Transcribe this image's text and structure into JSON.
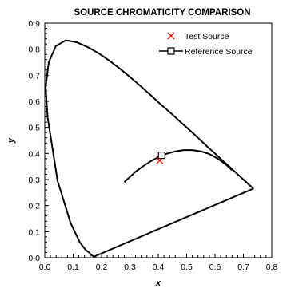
{
  "chart_data": {
    "type": "scatter",
    "title": "SOURCE CHROMATICITY COMPARISON",
    "xlabel": "x",
    "ylabel": "y",
    "xlim": [
      0.0,
      0.8
    ],
    "ylim": [
      0.0,
      0.9
    ],
    "xticks": [
      "0.0",
      "0.1",
      "0.2",
      "0.3",
      "0.4",
      "0.5",
      "0.6",
      "0.7",
      "0.8"
    ],
    "yticks": [
      "0.0",
      "0.1",
      "0.2",
      "0.3",
      "0.4",
      "0.5",
      "0.6",
      "0.7",
      "0.8",
      "0.9"
    ],
    "grid": false,
    "legend": "top-right",
    "spectral_locus": {
      "x": [
        0.175,
        0.171,
        0.166,
        0.156,
        0.144,
        0.124,
        0.091,
        0.045,
        0.01,
        0.003,
        0.014,
        0.039,
        0.074,
        0.114,
        0.155,
        0.193,
        0.23,
        0.266,
        0.302,
        0.337,
        0.373,
        0.408,
        0.444,
        0.479,
        0.513,
        0.545,
        0.575,
        0.603,
        0.627,
        0.648,
        0.666,
        0.68,
        0.692,
        0.701,
        0.708,
        0.714,
        0.719,
        0.723,
        0.727,
        0.73,
        0.735
      ],
      "y": [
        0.005,
        0.005,
        0.009,
        0.02,
        0.03,
        0.058,
        0.133,
        0.295,
        0.538,
        0.655,
        0.75,
        0.812,
        0.834,
        0.826,
        0.806,
        0.782,
        0.754,
        0.724,
        0.692,
        0.659,
        0.624,
        0.589,
        0.555,
        0.52,
        0.487,
        0.455,
        0.424,
        0.397,
        0.372,
        0.352,
        0.334,
        0.32,
        0.308,
        0.299,
        0.292,
        0.286,
        0.281,
        0.277,
        0.273,
        0.27,
        0.265
      ]
    },
    "planckian_locus": {
      "x": [
        0.28,
        0.3,
        0.32,
        0.345,
        0.37,
        0.4,
        0.43,
        0.46,
        0.49,
        0.52,
        0.55,
        0.58,
        0.61,
        0.64,
        0.66
      ],
      "y": [
        0.29,
        0.31,
        0.33,
        0.35,
        0.368,
        0.386,
        0.399,
        0.408,
        0.413,
        0.413,
        0.408,
        0.398,
        0.38,
        0.356,
        0.335
      ]
    },
    "series": [
      {
        "name": "Test Source",
        "marker": "x",
        "color": "#ff0000",
        "x": [
          0.405
        ],
        "y": [
          0.373
        ]
      },
      {
        "name": "Reference Source",
        "marker": "square",
        "color": "#000000",
        "x": [
          0.412
        ],
        "y": [
          0.393
        ]
      }
    ]
  }
}
